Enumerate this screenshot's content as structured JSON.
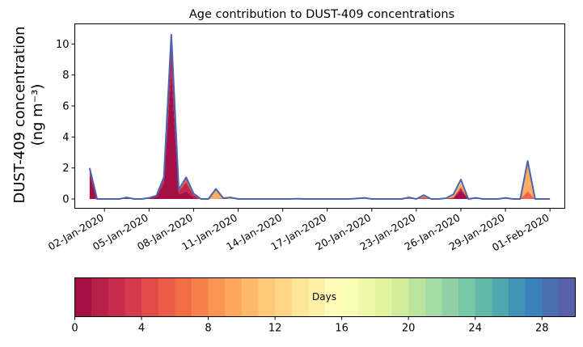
{
  "chart_data": [
    {
      "type": "area",
      "title": "Age contribution to DUST-409 concentrations",
      "ylabel_line1": "DUST-409 concentration",
      "ylabel_line2": "(ng m⁻³)",
      "xlabel": "",
      "xlim": [
        "2019-12-31",
        "2020-02-02"
      ],
      "ylim": [
        -0.6,
        11.3
      ],
      "yticks": [
        0,
        2,
        4,
        6,
        8,
        10
      ],
      "xtick_labels": [
        "02-Jan-2020",
        "05-Jan-2020",
        "08-Jan-2020",
        "11-Jan-2020",
        "14-Jan-2020",
        "17-Jan-2020",
        "20-Jan-2020",
        "23-Jan-2020",
        "26-Jan-2020",
        "29-Jan-2020",
        "01-Feb-2020"
      ],
      "outline_color": "#4b64b0",
      "x": [
        "2020-01-01",
        "2020-01-01T12",
        "2020-01-02",
        "2020-01-02T12",
        "2020-01-03",
        "2020-01-03T12",
        "2020-01-04",
        "2020-01-04T12",
        "2020-01-05",
        "2020-01-05T12",
        "2020-01-06",
        "2020-01-06T12",
        "2020-01-07",
        "2020-01-07T12",
        "2020-01-08",
        "2020-01-08T12",
        "2020-01-09",
        "2020-01-09T12",
        "2020-01-10",
        "2020-01-10T12",
        "2020-01-11",
        "2020-01-11T12",
        "2020-01-12",
        "2020-01-12T12",
        "2020-01-13",
        "2020-01-13T12",
        "2020-01-14",
        "2020-01-14T12",
        "2020-01-15",
        "2020-01-15T12",
        "2020-01-16",
        "2020-01-16T12",
        "2020-01-17",
        "2020-01-17T12",
        "2020-01-18",
        "2020-01-18T12",
        "2020-01-19",
        "2020-01-19T12",
        "2020-01-20",
        "2020-01-20T12",
        "2020-01-21",
        "2020-01-21T12",
        "2020-01-22",
        "2020-01-22T12",
        "2020-01-23",
        "2020-01-23T12",
        "2020-01-24",
        "2020-01-24T12",
        "2020-01-25",
        "2020-01-25T12",
        "2020-01-26",
        "2020-01-26T12",
        "2020-01-27",
        "2020-01-27T12",
        "2020-01-28",
        "2020-01-28T12",
        "2020-01-29",
        "2020-01-29T12",
        "2020-01-30",
        "2020-01-30T12",
        "2020-01-31",
        "2020-01-31T12",
        "2020-02-01"
      ],
      "series": [
        {
          "color": "#a50f45",
          "values": [
            1.6,
            0,
            0,
            0,
            0,
            0.05,
            0,
            0,
            0.05,
            0.15,
            1.0,
            8.3,
            0.3,
            0.5,
            0.1,
            0,
            0,
            0,
            0,
            0,
            0,
            0,
            0,
            0,
            0,
            0,
            0,
            0,
            0,
            0,
            0,
            0,
            0,
            0,
            0,
            0,
            0,
            0,
            0,
            0,
            0,
            0,
            0,
            0,
            0,
            0,
            0,
            0,
            0,
            0.05,
            0.55,
            0,
            0,
            0,
            0,
            0,
            0,
            0,
            0,
            0,
            0,
            0,
            0
          ]
        },
        {
          "color": "#c2264a",
          "values": [
            0.3,
            0,
            0,
            0,
            0,
            0.03,
            0,
            0,
            0.02,
            0.05,
            0.3,
            1.6,
            0.2,
            0.6,
            0.15,
            0,
            0,
            0,
            0,
            0,
            0,
            0,
            0,
            0,
            0,
            0,
            0,
            0,
            0,
            0,
            0,
            0,
            0,
            0,
            0,
            0,
            0,
            0,
            0,
            0,
            0,
            0,
            0,
            0,
            0,
            0.05,
            0,
            0,
            0.03,
            0.05,
            0.15,
            0,
            0.02,
            0,
            0,
            0,
            0,
            0,
            0,
            0,
            0,
            0,
            0
          ]
        },
        {
          "color": "#f0654b",
          "values": [
            0.1,
            0,
            0,
            0,
            0,
            0.02,
            0,
            0,
            0,
            0.02,
            0.1,
            0.6,
            0.1,
            0.3,
            0.1,
            0,
            0,
            0,
            0.05,
            0,
            0,
            0,
            0,
            0,
            0,
            0,
            0,
            0,
            0,
            0,
            0,
            0,
            0,
            0,
            0,
            0,
            0.03,
            0.02,
            0,
            0,
            0,
            0,
            0,
            0.05,
            0,
            0.1,
            0,
            0,
            0,
            0,
            0.1,
            0,
            0.02,
            0,
            0,
            0,
            0.05,
            0,
            0,
            0.5,
            0,
            0,
            0
          ]
        },
        {
          "color": "#fdad61",
          "values": [
            0,
            0,
            0,
            0,
            0,
            0,
            0,
            0,
            0,
            0,
            0,
            0.1,
            0,
            0,
            0,
            0,
            0,
            0.65,
            0,
            0.1,
            0,
            0,
            0,
            0,
            0,
            0,
            0,
            0,
            0.02,
            0,
            0,
            0,
            0,
            0,
            0,
            0,
            0,
            0.05,
            0,
            0,
            0,
            0,
            0,
            0.05,
            0,
            0.1,
            0,
            0,
            0.02,
            0.15,
            0.25,
            0,
            0.03,
            0,
            0,
            0,
            0.02,
            0,
            0,
            1.9,
            0,
            0,
            0
          ]
        },
        {
          "color": "#fee08b",
          "values": [
            0,
            0,
            0,
            0,
            0,
            0,
            0,
            0,
            0,
            0,
            0,
            0,
            0,
            0,
            0,
            0,
            0,
            0,
            0,
            0,
            0,
            0,
            0,
            0,
            0,
            0,
            0,
            0,
            0,
            0,
            0,
            0,
            0,
            0,
            0,
            0,
            0,
            0,
            0,
            0,
            0,
            0,
            0,
            0,
            0,
            0,
            0,
            0,
            0,
            0.05,
            0.15,
            0,
            0,
            0,
            0,
            0,
            0,
            0,
            0,
            0.05,
            0,
            0,
            0
          ]
        },
        {
          "color": "#e6f598",
          "values": [
            0,
            0,
            0,
            0,
            0,
            0,
            0,
            0,
            0,
            0,
            0,
            0,
            0,
            0,
            0,
            0,
            0,
            0,
            0,
            0,
            0,
            0,
            0,
            0,
            0,
            0,
            0,
            0,
            0,
            0,
            0,
            0,
            0,
            0,
            0,
            0,
            0,
            0,
            0,
            0,
            0,
            0,
            0,
            0,
            0,
            0,
            0,
            0,
            0,
            0,
            0.05,
            0,
            0,
            0,
            0,
            0,
            0,
            0,
            0,
            0,
            0,
            0,
            0
          ]
        }
      ]
    },
    {
      "type": "heatmap",
      "label": "Days",
      "vmin": 0,
      "vmax": 30,
      "ticks": [
        0,
        4,
        8,
        12,
        16,
        20,
        24,
        28
      ],
      "colors": [
        "#a50f45",
        "#b61f48",
        "#c62b4b",
        "#d6394c",
        "#e14b4a",
        "#ea5b48",
        "#f36d44",
        "#f7814a",
        "#fa9452",
        "#fca85d",
        "#fdb86a",
        "#fec878",
        "#fed686",
        "#fee597",
        "#fff0a8",
        "#fffcbb",
        "#f9fcb3",
        "#eef8a6",
        "#e2f39d",
        "#d1ec9c",
        "#bce49f",
        "#a6dba3",
        "#8fd0a4",
        "#77c6a6",
        "#62b9a9",
        "#50a7af",
        "#3f94b5",
        "#3b82ba",
        "#4a6fb1",
        "#5a60a8"
      ]
    }
  ]
}
